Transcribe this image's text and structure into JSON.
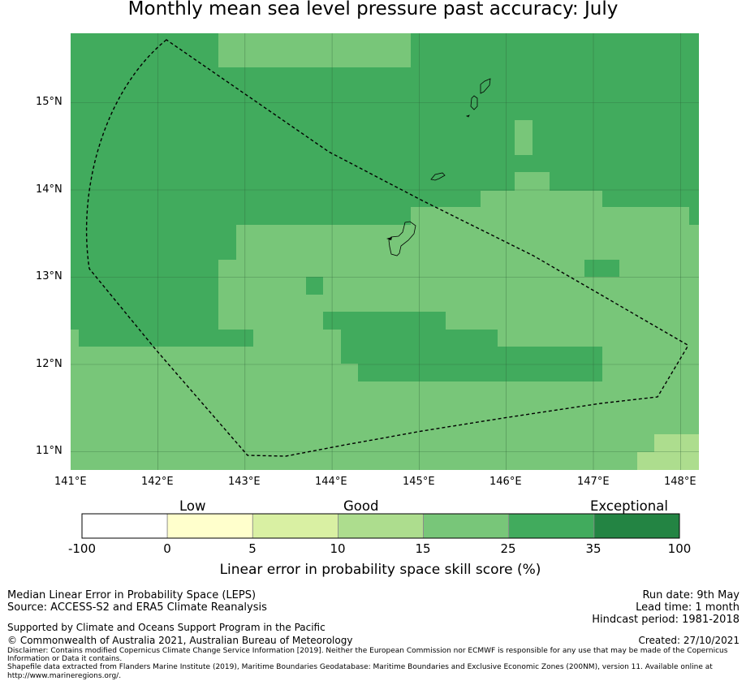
{
  "title": "Monthly mean sea level pressure past accuracy: July",
  "map": {
    "x_ticks": [
      "141°E",
      "142°E",
      "143°E",
      "144°E",
      "145°E",
      "146°E",
      "147°E",
      "148°E"
    ],
    "y_ticks": [
      "15°N",
      "14°N",
      "13°N",
      "12°N",
      "11°N"
    ],
    "colors": {
      "band_15_25": "#78c679",
      "band_25_35": "#41ab5d",
      "band_10_15": "#addd8e",
      "gridline": "#2d5f36",
      "boundary": "#000000"
    }
  },
  "colorbar": {
    "categories": {
      "low": "Low",
      "good": "Good",
      "exceptional": "Exceptional"
    },
    "ticks": [
      "-100",
      "0",
      "5",
      "10",
      "15",
      "25",
      "35",
      "100"
    ],
    "colors": [
      "#ffffff",
      "#ffffcc",
      "#d9f0a3",
      "#addd8e",
      "#78c679",
      "#41ab5d",
      "#238443"
    ],
    "label": "Linear error in probability space skill score (%)"
  },
  "footer": {
    "line1": "Median Linear Error in Probability Space (LEPS)",
    "line2": "Source: ACCESS-S2 and ERA5 Climate Reanalysis",
    "supported": "Supported by Climate and Oceans Support Program in the Pacific",
    "copyright": "© Commonwealth of Australia 2021, Australian Bureau of Meteorology",
    "run_date": "Run date: 9th May",
    "lead_time": "Lead time: 1 month",
    "hindcast": "Hindcast period: 1981-2018",
    "created": "Created: 27/10/2021",
    "disclaimer1": "Disclaimer: Contains modified Copernicus Climate Change Service Information [2019]. Neither the European Commission nor ECMWF is responsible for any use that may be made of the Copernicus Information or Data it contains.",
    "disclaimer2": "Shapefile data extracted from Flanders Marine Institute (2019), Maritime Boundaries Geodatabase: Maritime Boundaries and Exclusive Economic Zones (200NM), version 11. Available online at http://www.marineregions.org/."
  }
}
